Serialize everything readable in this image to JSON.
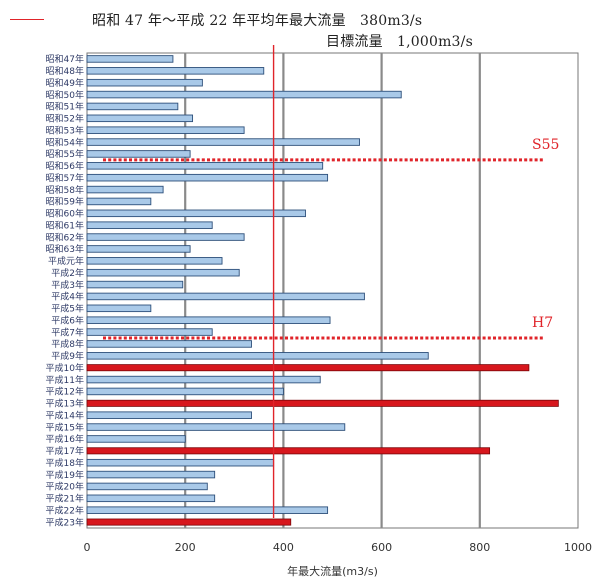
{
  "legend": {
    "average_text": "昭和 47 年～平成 22 年平均年最大流量　380m3/s",
    "target_text": "目標流量　1,000m3/s",
    "average_color": "#e0242a"
  },
  "chart_data": {
    "type": "bar",
    "orientation": "horizontal",
    "xlabel": "年最大流量(m3/s)",
    "xlim": [
      0,
      1000
    ],
    "xticks": [
      "0",
      "200",
      "400",
      "600",
      "800",
      "1000"
    ],
    "grid": true,
    "categories": [
      "昭和47年",
      "昭和48年",
      "昭和49年",
      "昭和50年",
      "昭和51年",
      "昭和52年",
      "昭和53年",
      "昭和54年",
      "昭和55年",
      "昭和56年",
      "昭和57年",
      "昭和58年",
      "昭和59年",
      "昭和60年",
      "昭和61年",
      "昭和62年",
      "昭和63年",
      "平成元年",
      "平成2年",
      "平成3年",
      "平成4年",
      "平成5年",
      "平成6年",
      "平成7年",
      "平成8年",
      "平成9年",
      "平成10年",
      "平成11年",
      "平成12年",
      "平成13年",
      "平成14年",
      "平成15年",
      "平成16年",
      "平成17年",
      "平成18年",
      "平成19年",
      "平成20年",
      "平成21年",
      "平成22年",
      "平成23年"
    ],
    "values": [
      175,
      360,
      235,
      640,
      185,
      215,
      320,
      555,
      210,
      480,
      490,
      155,
      130,
      445,
      255,
      320,
      210,
      275,
      310,
      195,
      565,
      130,
      495,
      255,
      335,
      695,
      900,
      475,
      400,
      960,
      335,
      525,
      200,
      820,
      380,
      260,
      245,
      260,
      490,
      415
    ],
    "highlighted": [
      "平成10年",
      "平成13年",
      "平成17年",
      "平成23年"
    ],
    "bar_color": "#a9c9e8",
    "highlight_color": "#d7171d",
    "average_value": 380,
    "annotations": [
      {
        "label": "S55",
        "after_category": "昭和55年"
      },
      {
        "label": "H7",
        "after_category": "平成7年"
      }
    ]
  }
}
